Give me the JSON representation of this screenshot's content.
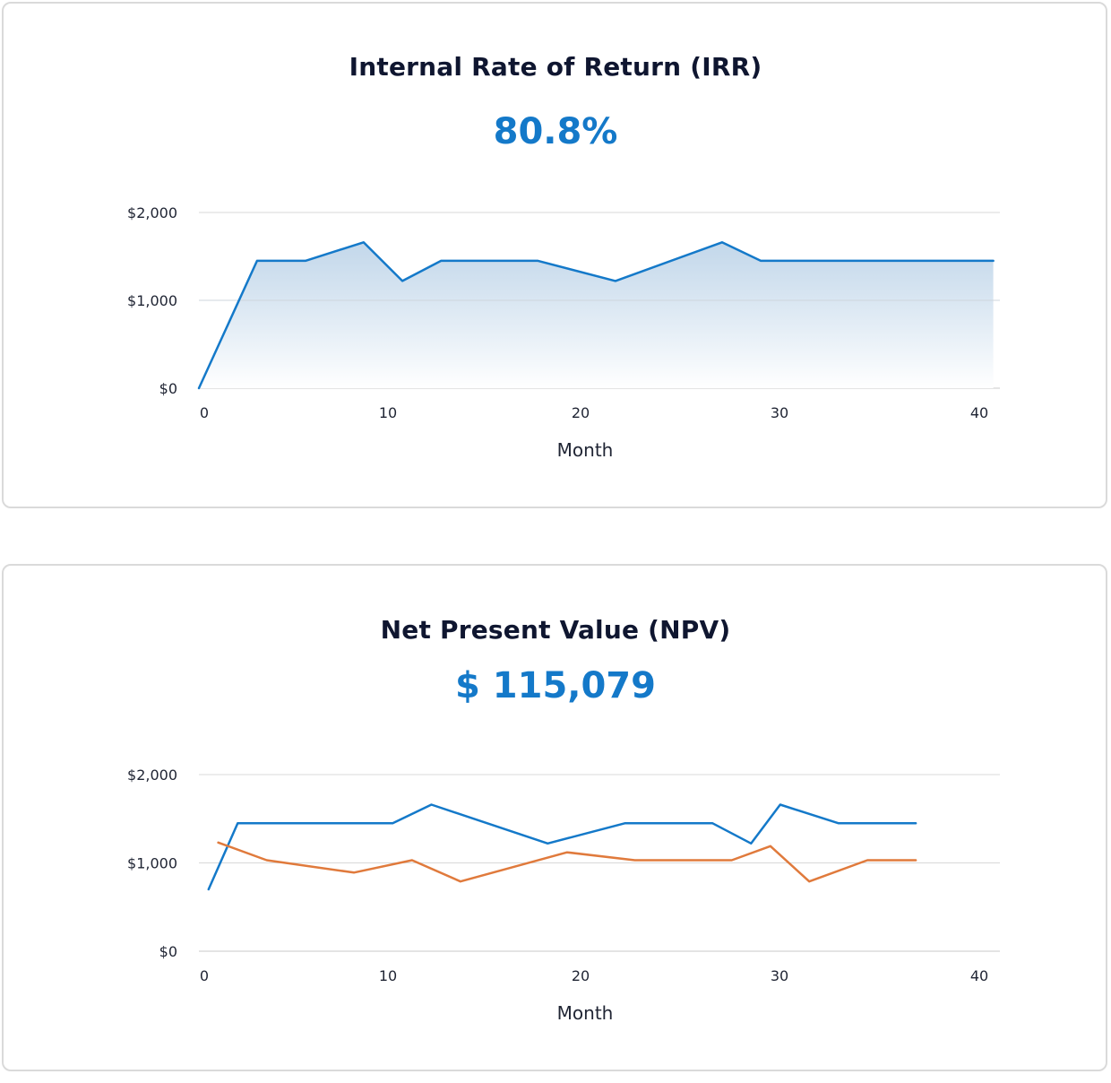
{
  "colors": {
    "accent": "#1479c9",
    "series_blue": "#1479c9",
    "series_orange": "#e07a3c",
    "grid": "#d9d9d9"
  },
  "irr": {
    "title": "Internal Rate of Return (IRR)",
    "value": "80.8%"
  },
  "npv": {
    "title": "Net Present Value (NPV)",
    "value": "$ 115,079"
  },
  "chart_data": [
    {
      "type": "area",
      "xlabel": "Month",
      "ylabel": "",
      "xlim": [
        0,
        41
      ],
      "ylim": [
        0,
        2000
      ],
      "x_ticks": [
        "0",
        "10",
        "20",
        "30",
        "40"
      ],
      "y_ticks": [
        "$0",
        "$1,000",
        "$2,000"
      ],
      "grid": true,
      "series": [
        {
          "color": "#1479c9",
          "x": [
            0,
            3,
            5.5,
            8.5,
            10.5,
            12.5,
            17.5,
            21.5,
            27,
            29,
            41
          ],
          "y": [
            0,
            1450,
            1450,
            1660,
            1220,
            1450,
            1450,
            1220,
            1660,
            1450,
            1450
          ]
        }
      ]
    },
    {
      "type": "line",
      "xlabel": "Month",
      "ylabel": "",
      "xlim": [
        0,
        41
      ],
      "ylim": [
        0,
        2000
      ],
      "x_ticks": [
        "0",
        "10",
        "20",
        "30",
        "40"
      ],
      "y_ticks": [
        "$0",
        "$1,000",
        "$2,000"
      ],
      "grid": true,
      "series": [
        {
          "color": "#1479c9",
          "x": [
            0.5,
            2,
            10,
            12,
            18,
            22,
            26.5,
            28.5,
            30,
            33,
            37
          ],
          "y": [
            700,
            1450,
            1450,
            1660,
            1220,
            1450,
            1450,
            1220,
            1660,
            1450,
            1450
          ]
        },
        {
          "color": "#e07a3c",
          "x": [
            1,
            3.5,
            8,
            11,
            13.5,
            19,
            22.5,
            27.5,
            29.5,
            31.5,
            34.5,
            37
          ],
          "y": [
            1230,
            1030,
            890,
            1030,
            790,
            1120,
            1030,
            1030,
            1190,
            790,
            1030,
            1030
          ]
        }
      ]
    }
  ]
}
